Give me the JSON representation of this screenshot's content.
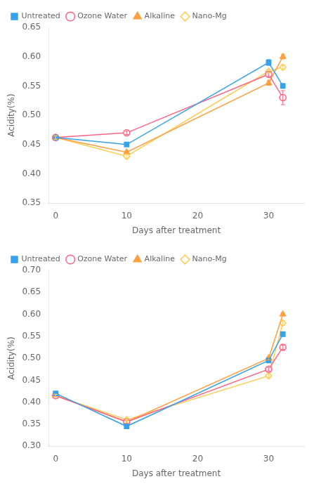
{
  "chart_data": [
    {
      "type": "line",
      "xlabel": "Days after treatment",
      "ylabel": "Acidity(%)",
      "x": [
        0,
        10,
        30,
        32
      ],
      "series": [
        {
          "name": "Untreated",
          "values": [
            0.462,
            0.45,
            0.59,
            0.55
          ],
          "errors": [
            0.003,
            0.003,
            0.005,
            0.004
          ],
          "marker": "square"
        },
        {
          "name": "Ozone Water",
          "values": [
            0.462,
            0.47,
            0.57,
            0.53
          ],
          "errors": [
            0.003,
            0.003,
            0.004,
            0.012
          ],
          "marker": "circle-open"
        },
        {
          "name": "Alkaline",
          "values": [
            0.462,
            0.437,
            0.555,
            0.6
          ],
          "errors": [
            0.003,
            0.003,
            0.004,
            0.004
          ],
          "marker": "triangle"
        },
        {
          "name": "Nano-Mg",
          "values": [
            0.462,
            0.43,
            0.575,
            0.582
          ],
          "errors": [
            0.003,
            0.004,
            0.003,
            0.004
          ],
          "marker": "diamond-open"
        }
      ],
      "xlim": [
        -1,
        35
      ],
      "xticks": [
        0,
        10,
        20,
        30
      ],
      "ylim": [
        0.35,
        0.65
      ],
      "yticks": [
        0.35,
        {
          "value": 0.4,
          "label": "0.40"
        },
        0.45,
        {
          "value": 0.5,
          "label": "0.50"
        },
        0.55,
        {
          "value": 0.6,
          "label": "0.60"
        },
        0.65
      ],
      "grid": false,
      "legend": "upper left"
    },
    {
      "type": "line",
      "xlabel": "Days after treatment",
      "ylabel": "Acidity(%)",
      "x": [
        0,
        10,
        30,
        32
      ],
      "series": [
        {
          "name": "Untreated",
          "values": [
            0.42,
            0.345,
            0.495,
            0.555
          ],
          "errors": [
            0.003,
            0.003,
            0.005,
            0.005
          ],
          "marker": "square"
        },
        {
          "name": "Ozone Water",
          "values": [
            0.415,
            0.355,
            0.475,
            0.525
          ],
          "errors": [
            0.003,
            0.003,
            0.004,
            0.005
          ],
          "marker": "circle-open"
        },
        {
          "name": "Alkaline",
          "values": [
            0.415,
            0.355,
            0.5,
            0.6
          ],
          "errors": [
            0.003,
            0.003,
            0.004,
            0.004
          ],
          "marker": "triangle"
        },
        {
          "name": "Nano-Mg",
          "values": [
            0.415,
            0.36,
            0.46,
            0.58
          ],
          "errors": [
            0.003,
            0.003,
            0.004,
            0.005
          ],
          "marker": "diamond-open"
        }
      ],
      "xlim": [
        -1,
        35
      ],
      "xticks": [
        0,
        10,
        20,
        30
      ],
      "ylim": [
        0.3,
        0.7
      ],
      "yticks": [
        {
          "value": 0.3,
          "label": "0.30"
        },
        0.35,
        {
          "value": 0.4,
          "label": "0.40"
        },
        0.45,
        {
          "value": 0.5,
          "label": "0.50"
        },
        0.55,
        {
          "value": 0.6,
          "label": "0.60"
        },
        0.65,
        {
          "value": 0.7,
          "label": "0.70"
        }
      ],
      "grid": false,
      "legend": "upper left"
    }
  ]
}
